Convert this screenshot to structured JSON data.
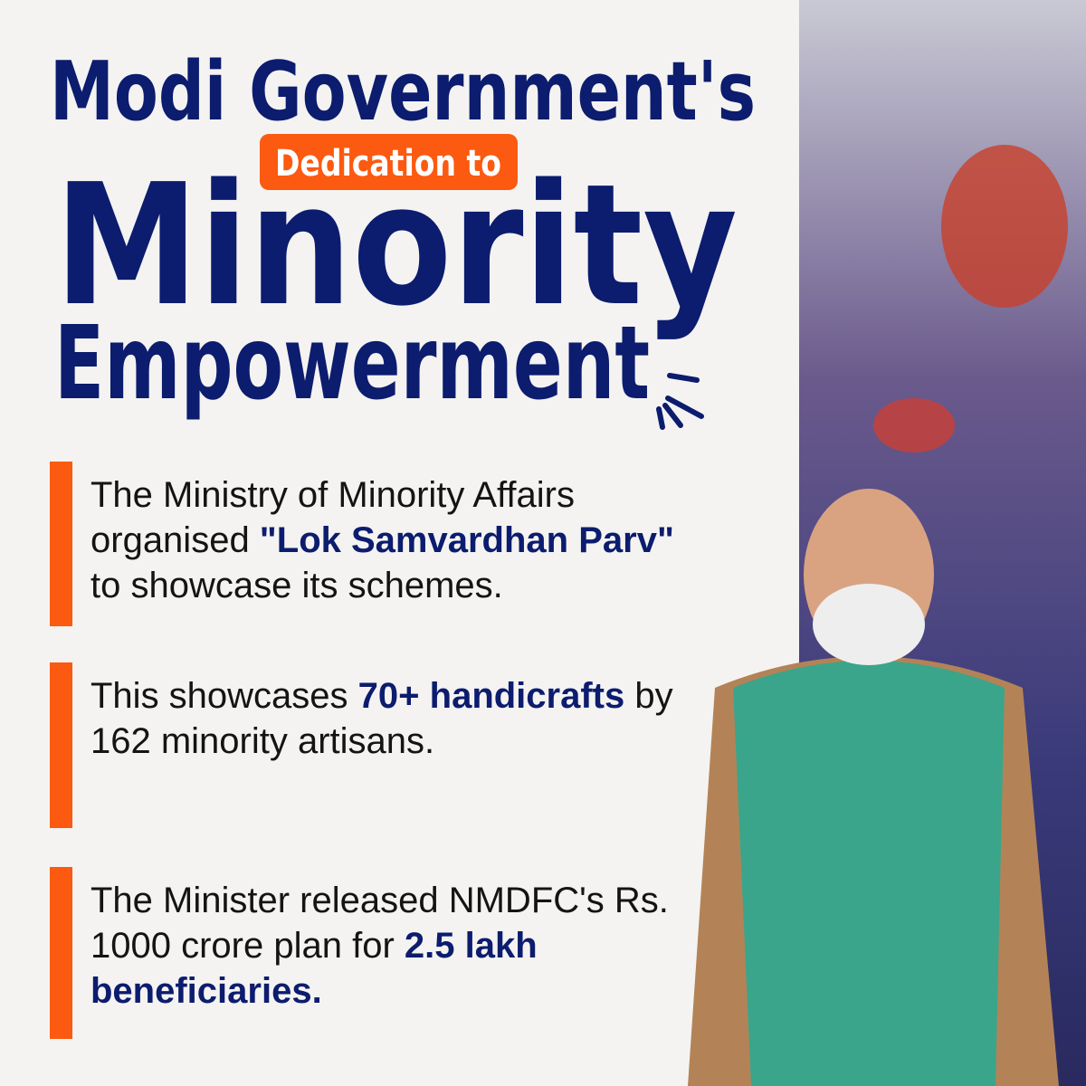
{
  "header": {
    "line1": "Modi Government's",
    "badge": "Dedication to",
    "line2": "Minority",
    "line3": "Empowerment"
  },
  "points": [
    {
      "segments": [
        {
          "text": "The Ministry of Minority Affairs organised ",
          "bold": false
        },
        {
          "text": "\"Lok Samvardhan Parv\"",
          "bold": true
        },
        {
          "text": " to showcase its schemes.",
          "bold": false
        }
      ]
    },
    {
      "segments": [
        {
          "text": "This showcases ",
          "bold": false
        },
        {
          "text": "70+ handicrafts",
          "bold": true
        },
        {
          "text": " by 162 minority artisans.",
          "bold": false
        }
      ]
    },
    {
      "segments": [
        {
          "text": "The Minister released NMDFC's Rs. 1000 crore plan for ",
          "bold": false
        },
        {
          "text": "2.5 lakh beneficiaries.",
          "bold": true
        }
      ]
    }
  ]
}
